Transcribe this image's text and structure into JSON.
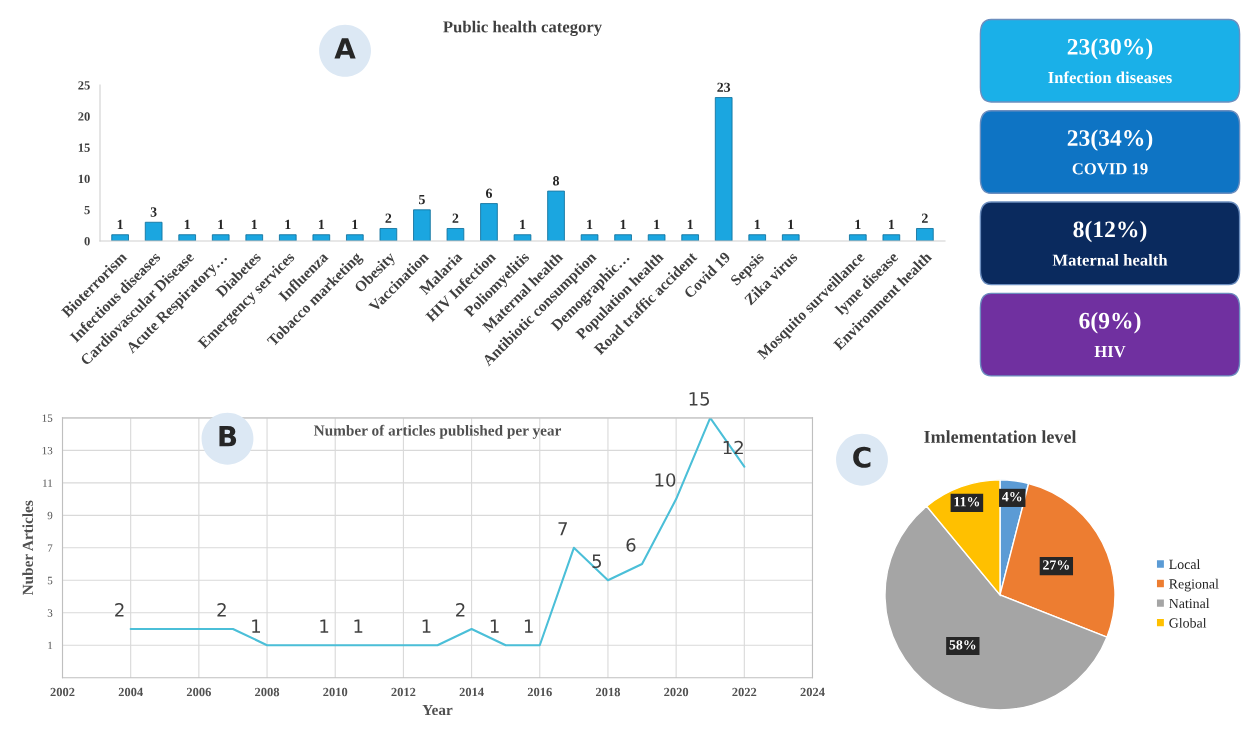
{
  "chart_data": [
    {
      "type": "bar",
      "title": "Public health category",
      "annotations": [
        "A"
      ],
      "categories": [
        "Bioterrorism",
        "Infectious diseases",
        "Cardiovascular Disease",
        "Acute Respiratory…",
        "Diabetes",
        "Emergency services",
        "Influenza",
        "Tobacco marketing",
        "Obesity",
        "Vaccination",
        "Malaria",
        "HIV Infection",
        "Poliomyelitis",
        "Maternal health",
        "Antibiotic consumption",
        "Demographic…",
        "Population health",
        "Road traffic accident",
        "Covid 19",
        "Sepsis",
        "Zika virus",
        null,
        "Mosquito surveillance",
        "lyme disease",
        "Environment health"
      ],
      "values": [
        1,
        3,
        1,
        1,
        1,
        1,
        1,
        1,
        2,
        5,
        2,
        6,
        1,
        8,
        1,
        1,
        1,
        1,
        23,
        1,
        1,
        null,
        1,
        1,
        2
      ],
      "color": "#1ba6e0",
      "ylim": [
        0,
        25
      ],
      "yticks": [
        0,
        5,
        10,
        15,
        20,
        25
      ],
      "data_labels": true,
      "grid": false,
      "legend": false
    },
    {
      "type": "other",
      "annotations": [
        "23(30%)",
        "Infection diseases",
        "23(34%)",
        "COVID 19",
        "8(12%)",
        "Maternal health",
        "6(9%)",
        "HIV"
      ]
    },
    {
      "type": "line",
      "title": "Number of articles published per year",
      "annotations": [
        "B"
      ],
      "xlabel": "Year",
      "ylabel": "Nuber Articles",
      "x": [
        2004,
        2007,
        2008,
        2010,
        2011,
        2013,
        2014,
        2015,
        2016,
        2017,
        2018,
        2019,
        2020,
        2021,
        2022
      ],
      "values": [
        2,
        2,
        1,
        1,
        1,
        1,
        2,
        1,
        1,
        7,
        5,
        6,
        10,
        15,
        12
      ],
      "color": "#4bbfd8",
      "xlim": [
        2002,
        2024
      ],
      "xticks": [
        2002,
        2004,
        2006,
        2008,
        2010,
        2012,
        2014,
        2016,
        2018,
        2020,
        2022,
        2024
      ],
      "ylim": [
        -1,
        15
      ],
      "yticks": [
        1,
        3,
        5,
        7,
        9,
        11,
        13,
        15
      ],
      "grid": true,
      "data_labels": true,
      "marker": "none",
      "line_style": "solid",
      "legend": false
    },
    {
      "type": "pie",
      "title": "Imlementation level",
      "annotations": [
        "C"
      ],
      "categories": [
        "Local",
        "Regional",
        "Natinal",
        "Global"
      ],
      "values": [
        4,
        27,
        58,
        11
      ],
      "colors": [
        "#5b9bd5",
        "#ed7d31",
        "#a5a5a5",
        "#ffc000"
      ],
      "value_labels": [
        "4%",
        "27%",
        "58%",
        "11%"
      ],
      "legend": "right"
    }
  ]
}
